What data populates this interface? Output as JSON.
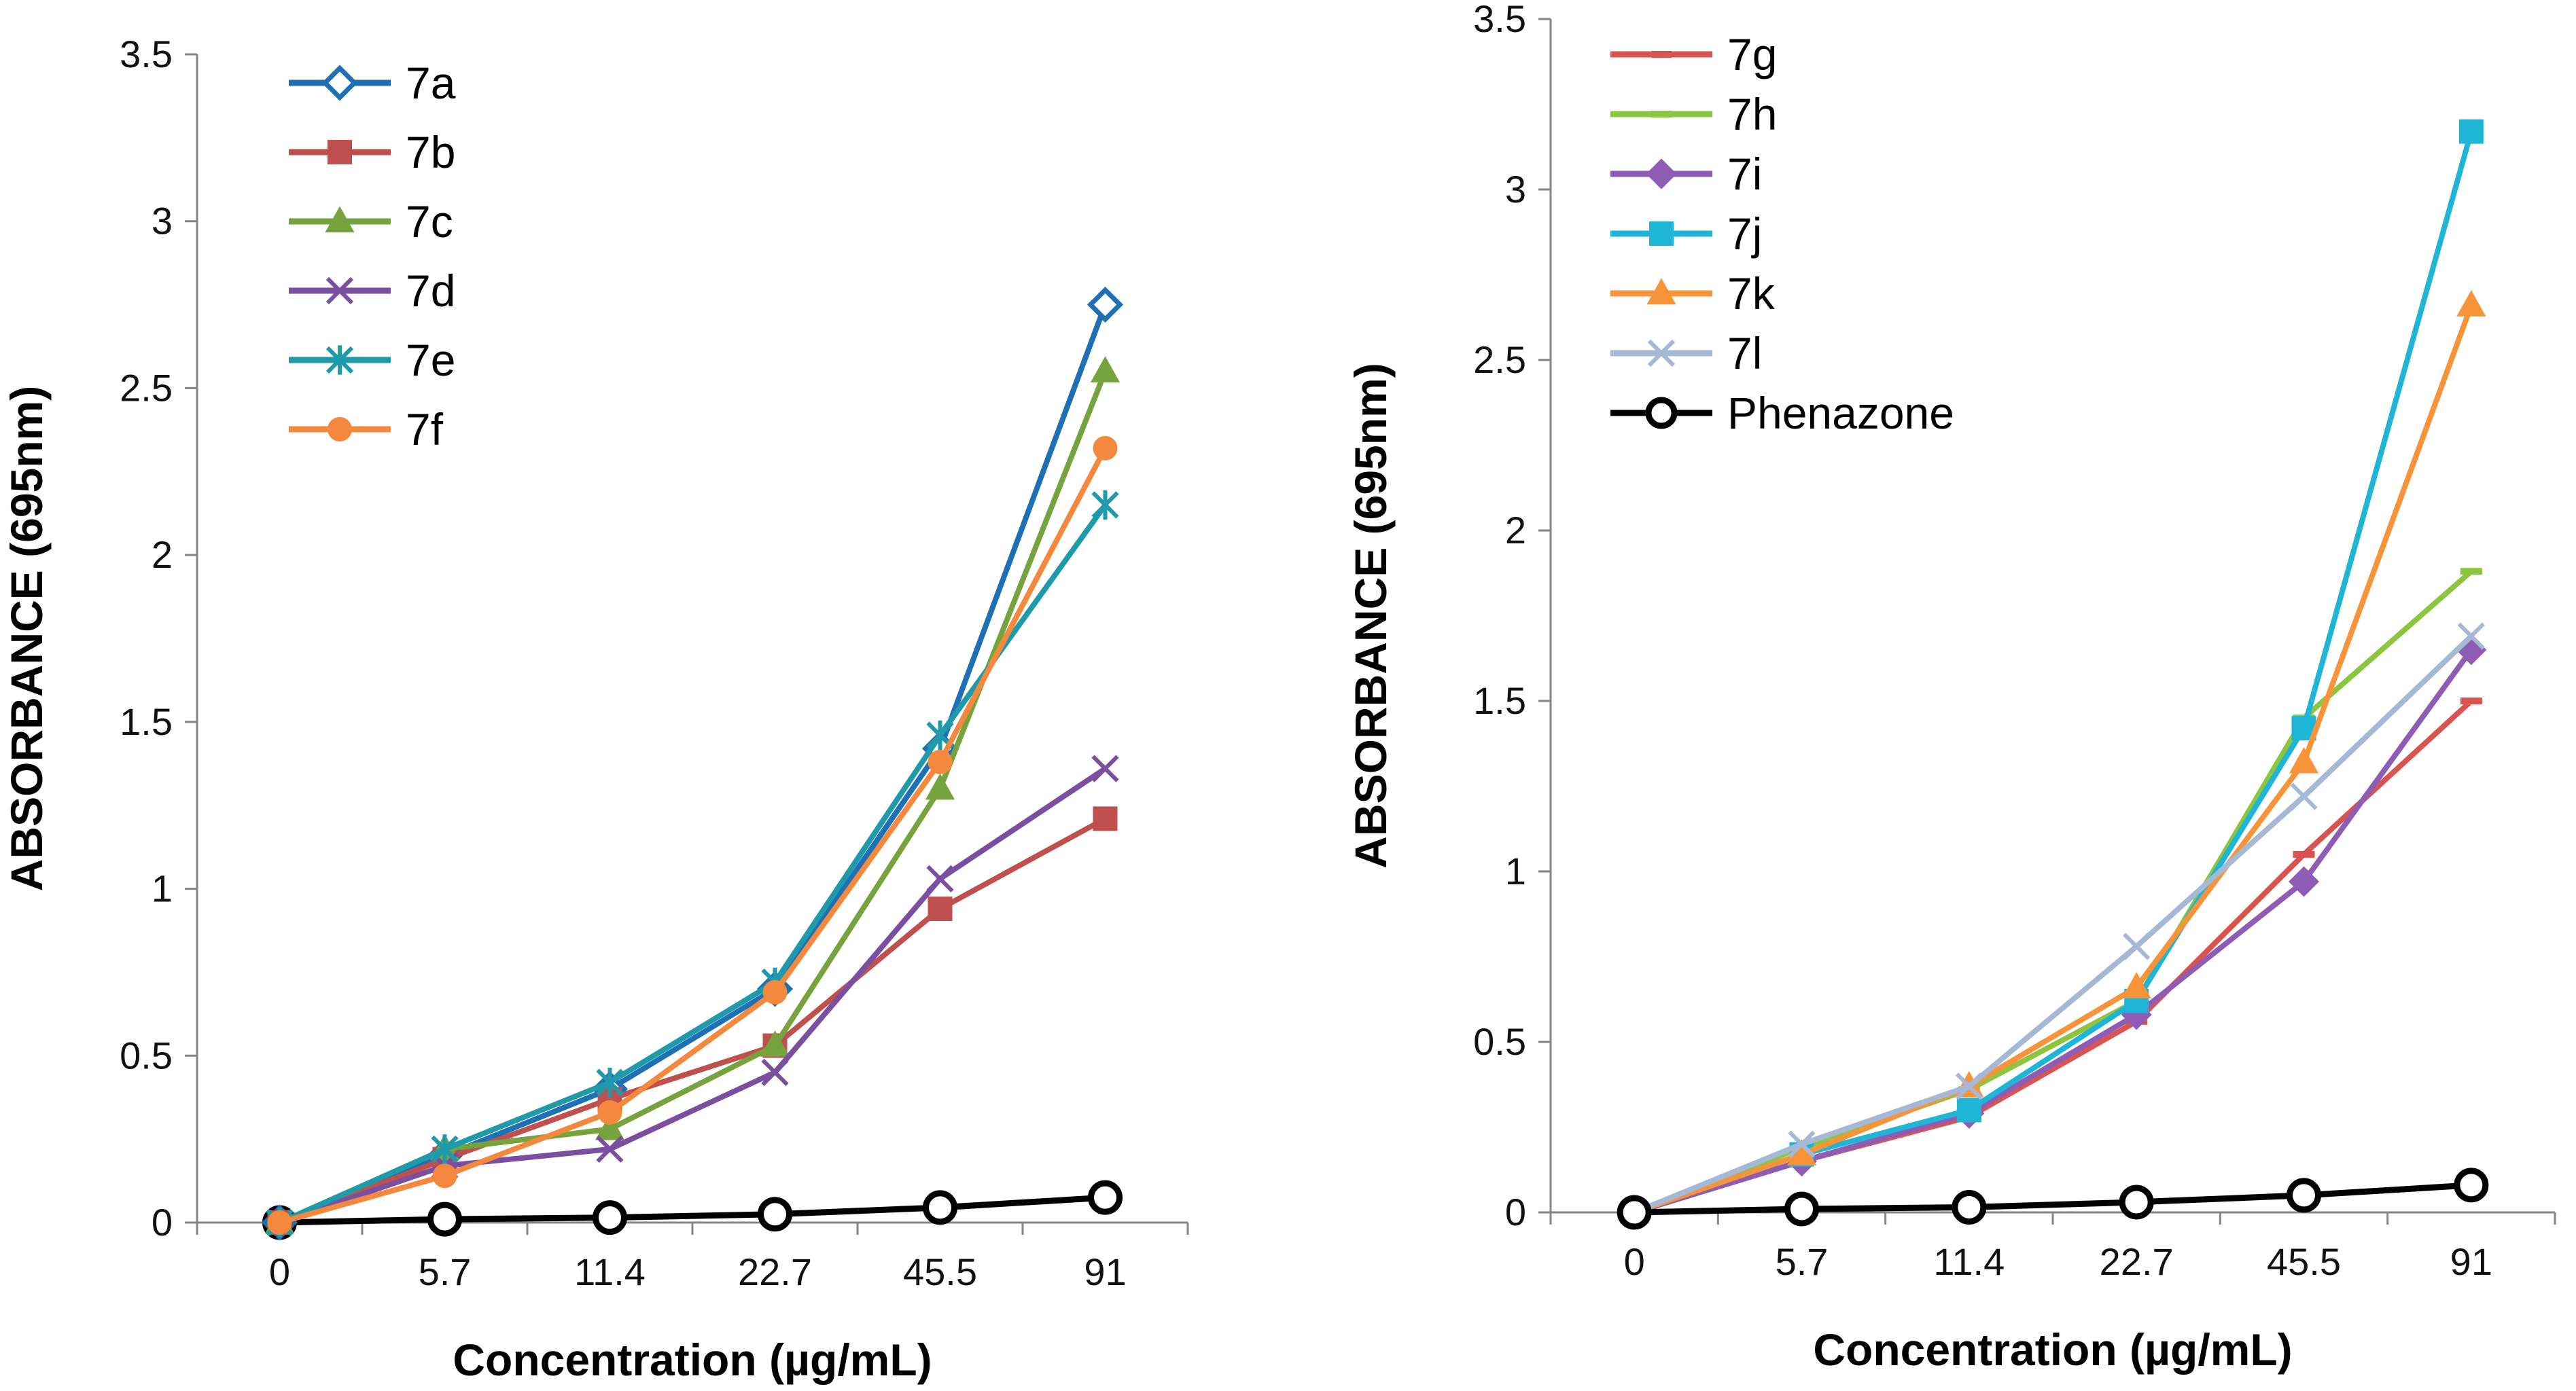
{
  "chart_data": [
    {
      "type": "line",
      "title": "",
      "xlabel": "Concentration (µg/mL)",
      "ylabel": "ABSORBANCE  (695nm)",
      "categories": [
        "0",
        "5.7",
        "11.4",
        "22.7",
        "45.5",
        "91"
      ],
      "ylim": [
        0,
        3.5
      ],
      "yticks": [
        "0",
        "0.5",
        "1",
        "1.5",
        "2",
        "2.5",
        "3",
        "3.5"
      ],
      "grid": false,
      "legend_position": "top-left",
      "series": [
        {
          "name": "Phenazone",
          "color": "#000000",
          "marker": "open-circle",
          "in_legend": false,
          "values": [
            0.0,
            0.01,
            0.015,
            0.025,
            0.045,
            0.075
          ]
        },
        {
          "name": "7a",
          "color": "#1F6FB4",
          "marker": "open-diamond",
          "in_legend": true,
          "values": [
            0.0,
            0.2,
            0.4,
            0.7,
            1.42,
            2.75
          ]
        },
        {
          "name": "7b",
          "color": "#C0504D",
          "marker": "square",
          "in_legend": true,
          "values": [
            0.0,
            0.19,
            0.37,
            0.53,
            0.94,
            1.21
          ]
        },
        {
          "name": "7c",
          "color": "#77A33F",
          "marker": "triangle",
          "in_legend": true,
          "values": [
            0.0,
            0.22,
            0.28,
            0.53,
            1.3,
            2.55
          ]
        },
        {
          "name": "7d",
          "color": "#7B4FA0",
          "marker": "x",
          "in_legend": true,
          "values": [
            0.0,
            0.17,
            0.22,
            0.45,
            1.03,
            1.36
          ]
        },
        {
          "name": "7e",
          "color": "#1E9AAA",
          "marker": "star",
          "in_legend": true,
          "values": [
            0.0,
            0.22,
            0.42,
            0.72,
            1.46,
            2.15
          ]
        },
        {
          "name": "7f",
          "color": "#F4883C",
          "marker": "circle",
          "in_legend": true,
          "values": [
            0.0,
            0.14,
            0.33,
            0.69,
            1.38,
            2.32
          ]
        }
      ]
    },
    {
      "type": "line",
      "title": "",
      "xlabel": "Concentration (µg/mL)",
      "ylabel": "ABSORBANCE  (695nm)",
      "categories": [
        "0",
        "5.7",
        "11.4",
        "22.7",
        "45.5",
        "91"
      ],
      "ylim": [
        0,
        3.5
      ],
      "yticks": [
        "0",
        "0.5",
        "1",
        "1.5",
        "2",
        "2.5",
        "3",
        "3.5"
      ],
      "grid": false,
      "legend_position": "top-left",
      "series": [
        {
          "name": "7g",
          "color": "#D9534F",
          "marker": "dash",
          "in_legend": true,
          "values": [
            0.0,
            0.15,
            0.28,
            0.56,
            1.05,
            1.5
          ]
        },
        {
          "name": "7h",
          "color": "#8CC63F",
          "marker": "dash",
          "in_legend": true,
          "values": [
            0.0,
            0.19,
            0.36,
            0.62,
            1.45,
            1.88
          ]
        },
        {
          "name": "7i",
          "color": "#8E5BB5",
          "marker": "diamond",
          "in_legend": true,
          "values": [
            0.0,
            0.15,
            0.29,
            0.58,
            0.97,
            1.65
          ]
        },
        {
          "name": "7j",
          "color": "#1FB5D6",
          "marker": "square",
          "in_legend": true,
          "values": [
            0.0,
            0.17,
            0.3,
            0.62,
            1.42,
            3.17
          ]
        },
        {
          "name": "7k",
          "color": "#F7943A",
          "marker": "triangle",
          "in_legend": true,
          "values": [
            0.0,
            0.17,
            0.37,
            0.66,
            1.32,
            2.66
          ]
        },
        {
          "name": "7l",
          "color": "#A5B8D6",
          "marker": "x",
          "in_legend": true,
          "values": [
            0.0,
            0.2,
            0.37,
            0.78,
            1.22,
            1.69
          ]
        },
        {
          "name": "Phenazone",
          "color": "#000000",
          "marker": "open-circle",
          "in_legend": true,
          "values": [
            0.0,
            0.01,
            0.015,
            0.03,
            0.05,
            0.08
          ]
        }
      ]
    }
  ]
}
